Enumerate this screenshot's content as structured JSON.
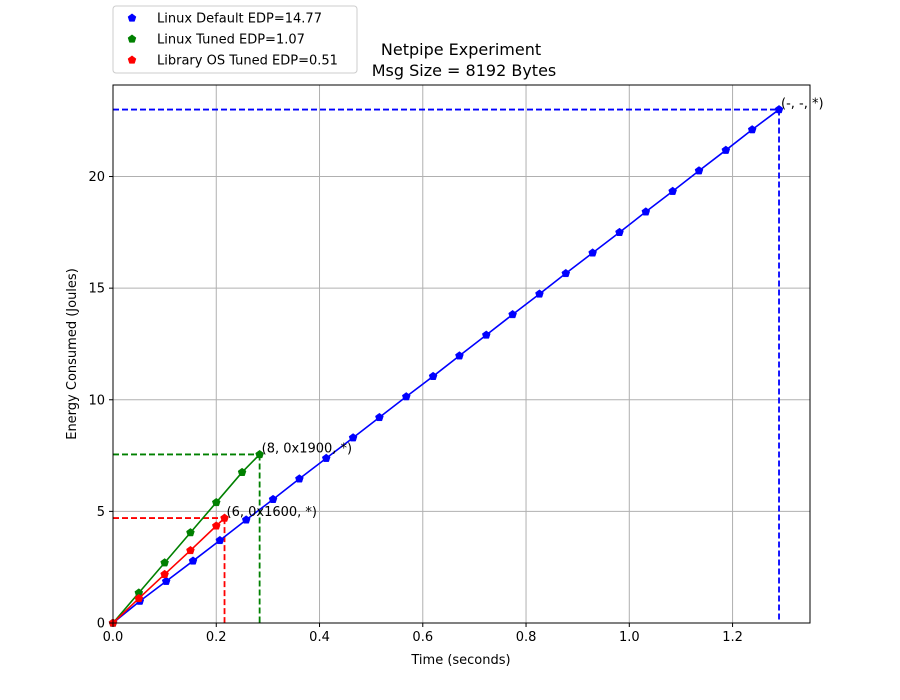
{
  "chart_data": {
    "type": "line",
    "title": "Netpipe Experiment",
    "subtitle": "Msg Size = 8192 Bytes",
    "xlabel": "Time (seconds)",
    "ylabel": "Energy Consumed (Joules)",
    "xlim": [
      0,
      1.35
    ],
    "ylim": [
      0,
      24.1
    ],
    "xticks": [
      0.0,
      0.2,
      0.4,
      0.6,
      0.8,
      1.0,
      1.2
    ],
    "xtick_labels": [
      "0.0",
      "0.2",
      "0.4",
      "0.6",
      "0.8",
      "1.0",
      "1.2"
    ],
    "yticks": [
      0,
      5,
      10,
      15,
      20
    ],
    "ytick_labels": [
      "0",
      "5",
      "10",
      "15",
      "20"
    ],
    "grid": true,
    "legend_position": "top-left, above the axes",
    "series": [
      {
        "name": "Linux Default EDP=14.77",
        "color": "#0000ff",
        "x": [
          0.0,
          0.052,
          0.103,
          0.155,
          0.207,
          0.258,
          0.31,
          0.361,
          0.413,
          0.465,
          0.516,
          0.568,
          0.62,
          0.671,
          0.723,
          0.774,
          0.826,
          0.877,
          0.929,
          0.981,
          1.032,
          1.084,
          1.135,
          1.187,
          1.238,
          1.29
        ],
        "y": [
          0.0,
          0.98,
          1.87,
          2.78,
          3.7,
          4.62,
          5.54,
          6.46,
          7.38,
          8.3,
          9.21,
          10.14,
          11.05,
          11.97,
          12.9,
          13.82,
          14.74,
          15.66,
          16.58,
          17.5,
          18.42,
          19.34,
          20.26,
          21.18,
          22.1,
          23.0
        ],
        "end_label": "(-, -, *)",
        "end_point": [
          1.29,
          23.0
        ]
      },
      {
        "name": "Linux Tuned EDP=1.07",
        "color": "#008000",
        "x": [
          0.0,
          0.05,
          0.1,
          0.15,
          0.2,
          0.25,
          0.284
        ],
        "y": [
          0.0,
          1.35,
          2.7,
          4.05,
          5.4,
          6.75,
          7.55
        ],
        "end_label": "(8, 0x1900, *)",
        "end_point": [
          0.284,
          7.55
        ]
      },
      {
        "name": "Library OS Tuned EDP=0.51",
        "color": "#ff0000",
        "x": [
          0.0,
          0.05,
          0.1,
          0.15,
          0.2,
          0.216
        ],
        "y": [
          0.0,
          1.1,
          2.18,
          3.25,
          4.35,
          4.7
        ],
        "end_label": "(6, 0x1600, *)",
        "end_point": [
          0.216,
          4.7
        ]
      }
    ]
  }
}
